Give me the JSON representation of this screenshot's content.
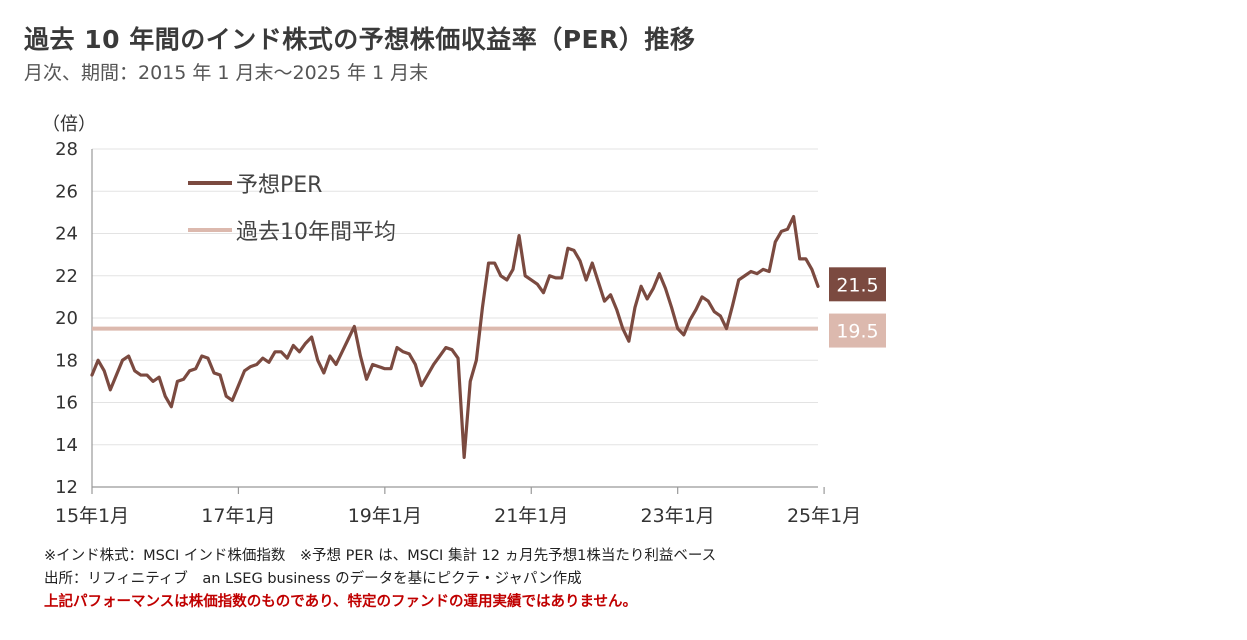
{
  "title": "過去 10 年間のインド株式の予想株価収益率（PER）推移",
  "subtitle": "月次、期間：2015 年 1 月末～2025 年 1 月末",
  "notes": {
    "line1": "※インド株式：MSCI インド株価指数　※予想 PER は、MSCI 集計 12 ヵ月先予想1株当たり利益ベース",
    "line2": "出所：リフィニティブ　an LSEG business のデータを基にピクテ・ジャパン作成",
    "warning": "上記パフォーマンスは株価指数のものであり、特定のファンドの運用実績ではありません。"
  },
  "colors": {
    "per": "#7b4a40",
    "average": "#dcb9ae",
    "grid": "#e3e3e3"
  },
  "chart_data": {
    "type": "line",
    "ylabel": "（倍）",
    "ylim": [
      12,
      28
    ],
    "yticks": [
      12,
      14,
      16,
      18,
      20,
      22,
      24,
      26,
      28
    ],
    "xticks": [
      {
        "label": "15年1月",
        "index": 0
      },
      {
        "label": "17年1月",
        "index": 24
      },
      {
        "label": "19年1月",
        "index": 48
      },
      {
        "label": "21年1月",
        "index": 72
      },
      {
        "label": "23年1月",
        "index": 96
      },
      {
        "label": "25年1月",
        "index": 120
      }
    ],
    "legend": [
      "予想PER",
      "過去10年間平均"
    ],
    "legend_position": "top-left",
    "series": [
      {
        "name": "予想PER",
        "values": [
          17.3,
          18.0,
          17.5,
          16.6,
          17.3,
          18.0,
          18.2,
          17.5,
          17.3,
          17.3,
          17.0,
          17.2,
          16.3,
          15.8,
          17.0,
          17.1,
          17.5,
          17.6,
          18.2,
          18.1,
          17.4,
          17.3,
          16.3,
          16.1,
          16.8,
          17.5,
          17.7,
          17.8,
          18.1,
          17.9,
          18.4,
          18.4,
          18.1,
          18.7,
          18.4,
          18.8,
          19.1,
          18.0,
          17.4,
          18.2,
          17.8,
          18.4,
          19.0,
          19.6,
          18.2,
          17.1,
          17.8,
          17.7,
          17.6,
          17.6,
          18.6,
          18.4,
          18.3,
          17.8,
          16.8,
          17.3,
          17.8,
          18.2,
          18.6,
          18.5,
          18.1,
          13.4,
          17.0,
          18.0,
          20.5,
          22.6,
          22.6,
          22.0,
          21.8,
          22.3,
          23.9,
          22.0,
          21.8,
          21.6,
          21.2,
          22.0,
          21.9,
          21.9,
          23.3,
          23.2,
          22.7,
          21.8,
          22.6,
          21.7,
          20.8,
          21.1,
          20.4,
          19.5,
          18.9,
          20.5,
          21.5,
          20.9,
          21.4,
          22.1,
          21.4,
          20.5,
          19.5,
          19.2,
          19.9,
          20.4,
          21.0,
          20.8,
          20.3,
          20.1,
          19.5,
          20.6,
          21.8,
          22.0,
          22.2,
          22.1,
          22.3,
          22.2,
          23.6,
          24.1,
          24.2,
          24.8,
          22.8,
          22.8,
          22.3,
          21.5
        ]
      },
      {
        "name": "過去10年間平均",
        "value": 19.5
      }
    ],
    "end_labels": {
      "per": "21.5",
      "average": "19.5"
    }
  }
}
